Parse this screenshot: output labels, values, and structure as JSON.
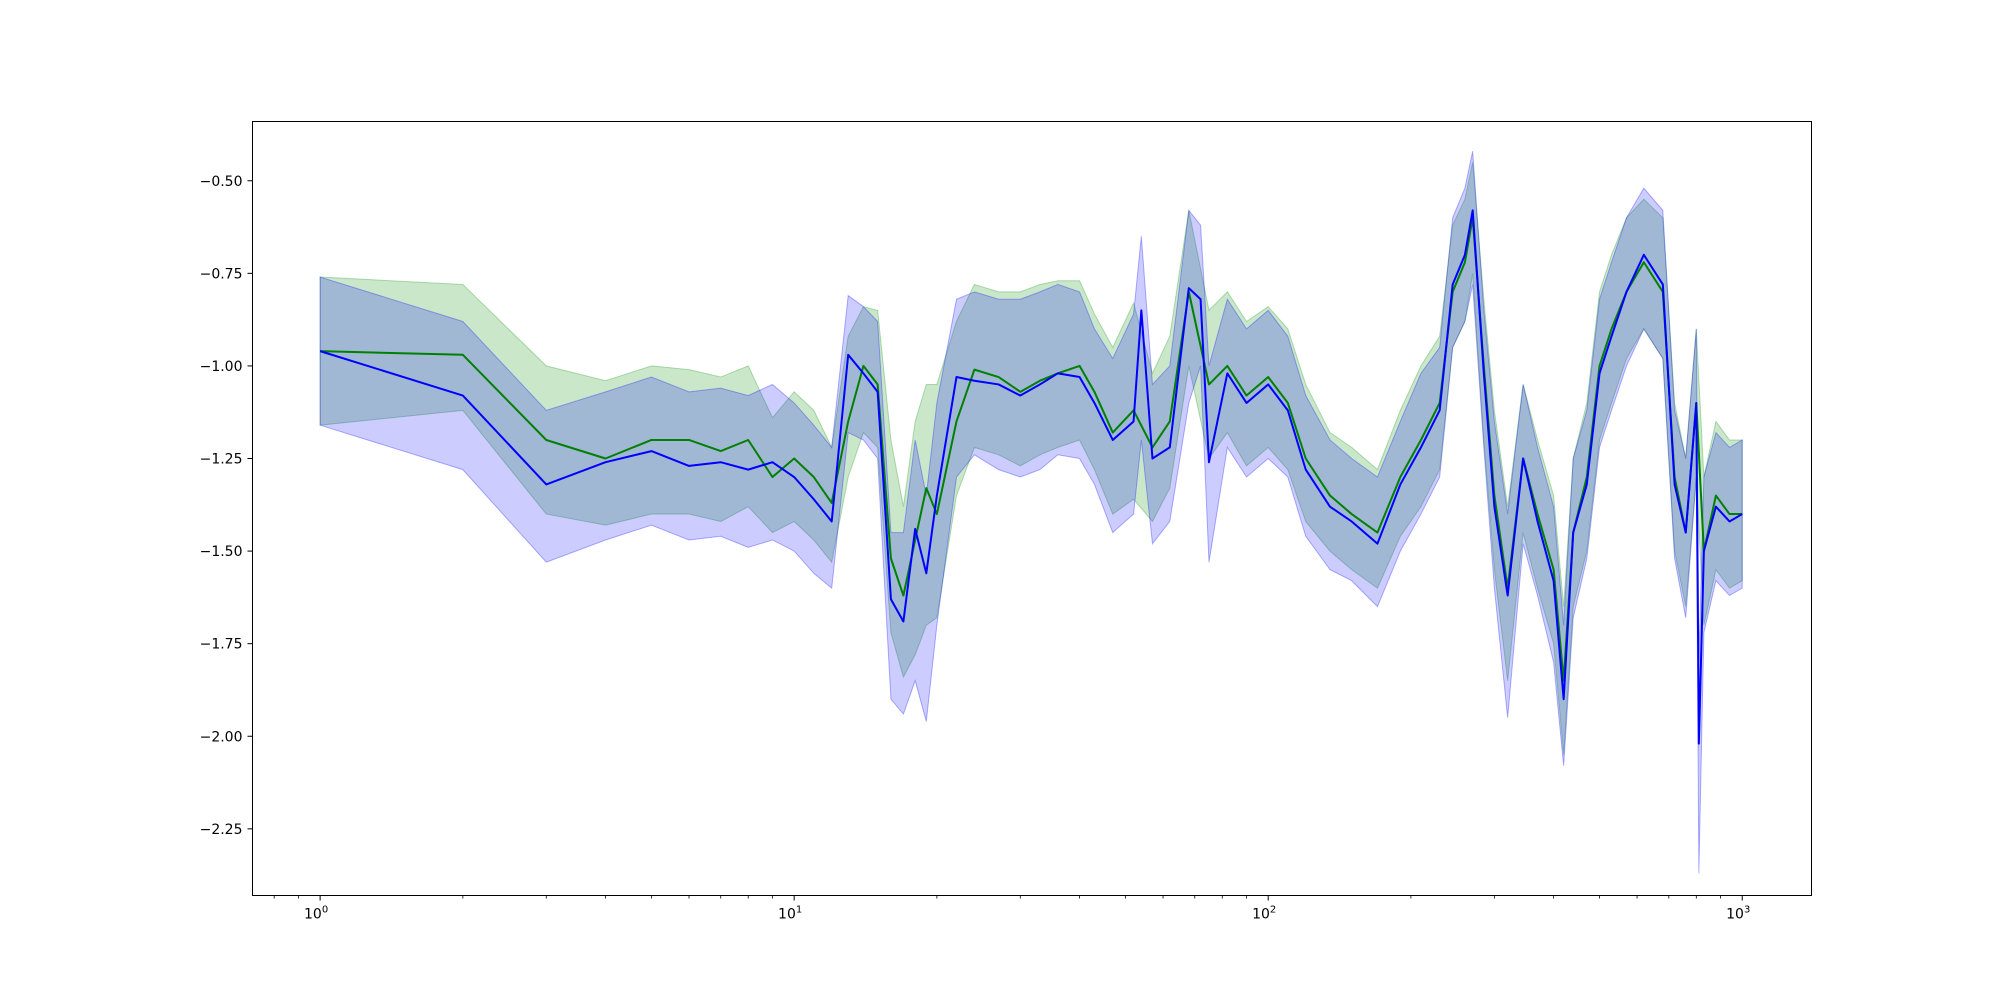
{
  "chart_data": {
    "type": "line",
    "title": "",
    "xlabel": "",
    "ylabel": "",
    "x_scale": "log",
    "xlim": [
      0.72,
      1400
    ],
    "ylim": [
      -2.43,
      -0.34
    ],
    "grid": false,
    "legend": "none",
    "x_ticks": [
      {
        "value": 1,
        "base": "10",
        "exp": "0"
      },
      {
        "value": 10,
        "base": "10",
        "exp": "1"
      },
      {
        "value": 100,
        "base": "10",
        "exp": "2"
      },
      {
        "value": 1000,
        "base": "10",
        "exp": "3"
      }
    ],
    "y_ticks": [
      {
        "value": -0.5,
        "label": "−0.50"
      },
      {
        "value": -0.75,
        "label": "−0.75"
      },
      {
        "value": -1.0,
        "label": "−1.00"
      },
      {
        "value": -1.25,
        "label": "−1.25"
      },
      {
        "value": -1.5,
        "label": "−1.50"
      },
      {
        "value": -1.75,
        "label": "−1.75"
      },
      {
        "value": -2.0,
        "label": "−2.00"
      },
      {
        "value": -2.25,
        "label": "−2.25"
      }
    ],
    "series": [
      {
        "color": "#008000",
        "band_color": "#2ca02c",
        "band_opacity": 0.25,
        "points": [
          [
            1,
            -0.96,
            -1.16,
            -0.76
          ],
          [
            2,
            -0.97,
            -1.12,
            -0.78
          ],
          [
            3,
            -1.2,
            -1.4,
            -1.0
          ],
          [
            4,
            -1.25,
            -1.43,
            -1.04
          ],
          [
            5,
            -1.2,
            -1.4,
            -1.0
          ],
          [
            6,
            -1.2,
            -1.4,
            -1.01
          ],
          [
            7,
            -1.23,
            -1.42,
            -1.03
          ],
          [
            8,
            -1.2,
            -1.38,
            -1.0
          ],
          [
            9,
            -1.3,
            -1.45,
            -1.14
          ],
          [
            10,
            -1.25,
            -1.42,
            -1.07
          ],
          [
            11,
            -1.3,
            -1.47,
            -1.12
          ],
          [
            12,
            -1.37,
            -1.53,
            -1.22
          ],
          [
            13,
            -1.15,
            -1.3,
            -0.92
          ],
          [
            14,
            -1.0,
            -1.18,
            -0.84
          ],
          [
            15,
            -1.05,
            -1.22,
            -0.85
          ],
          [
            16,
            -1.52,
            -1.72,
            -1.2
          ],
          [
            17,
            -1.62,
            -1.84,
            -1.38
          ],
          [
            18,
            -1.47,
            -1.78,
            -1.15
          ],
          [
            19,
            -1.33,
            -1.7,
            -1.05
          ],
          [
            20,
            -1.4,
            -1.68,
            -1.05
          ],
          [
            22,
            -1.15,
            -1.35,
            -0.88
          ],
          [
            24,
            -1.01,
            -1.22,
            -0.78
          ],
          [
            27,
            -1.03,
            -1.24,
            -0.8
          ],
          [
            30,
            -1.07,
            -1.27,
            -0.8
          ],
          [
            33,
            -1.04,
            -1.24,
            -0.78
          ],
          [
            36,
            -1.02,
            -1.22,
            -0.77
          ],
          [
            40,
            -1.0,
            -1.2,
            -0.77
          ],
          [
            43,
            -1.07,
            -1.28,
            -0.86
          ],
          [
            47,
            -1.18,
            -1.4,
            -0.95
          ],
          [
            52,
            -1.12,
            -1.36,
            -0.83
          ],
          [
            57,
            -1.22,
            -1.42,
            -1.02
          ],
          [
            62,
            -1.15,
            -1.33,
            -0.92
          ],
          [
            68,
            -0.8,
            -1.0,
            -0.58
          ],
          [
            75,
            -1.05,
            -1.25,
            -0.85
          ],
          [
            82,
            -1.0,
            -1.18,
            -0.8
          ],
          [
            90,
            -1.08,
            -1.27,
            -0.88
          ],
          [
            100,
            -1.03,
            -1.22,
            -0.84
          ],
          [
            110,
            -1.1,
            -1.28,
            -0.9
          ],
          [
            120,
            -1.25,
            -1.42,
            -1.05
          ],
          [
            135,
            -1.35,
            -1.5,
            -1.18
          ],
          [
            150,
            -1.4,
            -1.55,
            -1.22
          ],
          [
            170,
            -1.45,
            -1.6,
            -1.28
          ],
          [
            190,
            -1.3,
            -1.46,
            -1.12
          ],
          [
            210,
            -1.2,
            -1.38,
            -1.0
          ],
          [
            230,
            -1.1,
            -1.28,
            -0.92
          ],
          [
            245,
            -0.8,
            -0.95,
            -0.62
          ],
          [
            260,
            -0.72,
            -0.88,
            -0.55
          ],
          [
            270,
            -0.6,
            -0.75,
            -0.45
          ],
          [
            285,
            -1.0,
            -1.2,
            -0.82
          ],
          [
            300,
            -1.35,
            -1.55,
            -1.12
          ],
          [
            320,
            -1.6,
            -1.85,
            -1.38
          ],
          [
            345,
            -1.25,
            -1.45,
            -1.05
          ],
          [
            370,
            -1.4,
            -1.6,
            -1.2
          ],
          [
            400,
            -1.55,
            -1.75,
            -1.35
          ],
          [
            420,
            -1.85,
            -2.05,
            -1.65
          ],
          [
            440,
            -1.45,
            -1.65,
            -1.25
          ],
          [
            470,
            -1.3,
            -1.5,
            -1.1
          ],
          [
            500,
            -1.0,
            -1.2,
            -0.8
          ],
          [
            530,
            -0.9,
            -1.1,
            -0.7
          ],
          [
            570,
            -0.8,
            -0.98,
            -0.6
          ],
          [
            620,
            -0.72,
            -0.9,
            -0.55
          ],
          [
            680,
            -0.8,
            -0.98,
            -0.6
          ],
          [
            720,
            -1.3,
            -1.5,
            -1.1
          ],
          [
            760,
            -1.45,
            -1.65,
            -1.25
          ],
          [
            800,
            -1.1,
            -1.3,
            -0.9
          ],
          [
            830,
            -1.5,
            -1.7,
            -1.3
          ],
          [
            880,
            -1.35,
            -1.55,
            -1.15
          ],
          [
            940,
            -1.4,
            -1.6,
            -1.2
          ],
          [
            1000,
            -1.4,
            -1.58,
            -1.2
          ]
        ]
      },
      {
        "color": "#0000ff",
        "band_color": "#0000ff",
        "band_opacity": 0.2,
        "points": [
          [
            1,
            -0.96,
            -1.16,
            -0.76
          ],
          [
            2,
            -1.08,
            -1.28,
            -0.88
          ],
          [
            3,
            -1.32,
            -1.53,
            -1.12
          ],
          [
            4,
            -1.26,
            -1.47,
            -1.07
          ],
          [
            5,
            -1.23,
            -1.43,
            -1.03
          ],
          [
            6,
            -1.27,
            -1.47,
            -1.07
          ],
          [
            7,
            -1.26,
            -1.46,
            -1.06
          ],
          [
            8,
            -1.28,
            -1.49,
            -1.08
          ],
          [
            9,
            -1.26,
            -1.47,
            -1.05
          ],
          [
            10,
            -1.3,
            -1.5,
            -1.1
          ],
          [
            11,
            -1.36,
            -1.56,
            -1.16
          ],
          [
            12,
            -1.42,
            -1.6,
            -1.22
          ],
          [
            13,
            -0.97,
            -1.18,
            -0.81
          ],
          [
            14,
            -1.02,
            -1.2,
            -0.84
          ],
          [
            15,
            -1.07,
            -1.25,
            -0.88
          ],
          [
            16,
            -1.63,
            -1.9,
            -1.45
          ],
          [
            17,
            -1.69,
            -1.94,
            -1.45
          ],
          [
            18,
            -1.44,
            -1.85,
            -1.2
          ],
          [
            19,
            -1.56,
            -1.96,
            -1.35
          ],
          [
            20,
            -1.35,
            -1.7,
            -1.1
          ],
          [
            22,
            -1.03,
            -1.3,
            -0.82
          ],
          [
            24,
            -1.04,
            -1.24,
            -0.8
          ],
          [
            27,
            -1.05,
            -1.28,
            -0.82
          ],
          [
            30,
            -1.08,
            -1.3,
            -0.82
          ],
          [
            33,
            -1.05,
            -1.28,
            -0.8
          ],
          [
            36,
            -1.02,
            -1.24,
            -0.78
          ],
          [
            40,
            -1.03,
            -1.25,
            -0.8
          ],
          [
            43,
            -1.1,
            -1.32,
            -0.9
          ],
          [
            47,
            -1.2,
            -1.45,
            -0.98
          ],
          [
            52,
            -1.15,
            -1.4,
            -0.86
          ],
          [
            54,
            -0.85,
            -1.2,
            -0.65
          ],
          [
            57,
            -1.25,
            -1.48,
            -1.05
          ],
          [
            62,
            -1.22,
            -1.42,
            -1.0
          ],
          [
            68,
            -0.79,
            -1.1,
            -0.58
          ],
          [
            72,
            -0.82,
            -1.0,
            -0.62
          ],
          [
            75,
            -1.26,
            -1.53,
            -1.0
          ],
          [
            82,
            -1.02,
            -1.22,
            -0.82
          ],
          [
            90,
            -1.1,
            -1.3,
            -0.9
          ],
          [
            100,
            -1.05,
            -1.25,
            -0.85
          ],
          [
            110,
            -1.12,
            -1.3,
            -0.92
          ],
          [
            120,
            -1.28,
            -1.46,
            -1.08
          ],
          [
            135,
            -1.38,
            -1.55,
            -1.2
          ],
          [
            150,
            -1.42,
            -1.58,
            -1.25
          ],
          [
            170,
            -1.48,
            -1.65,
            -1.3
          ],
          [
            190,
            -1.32,
            -1.5,
            -1.15
          ],
          [
            210,
            -1.22,
            -1.4,
            -1.02
          ],
          [
            230,
            -1.12,
            -1.3,
            -0.95
          ],
          [
            245,
            -0.78,
            -0.95,
            -0.6
          ],
          [
            260,
            -0.7,
            -0.88,
            -0.52
          ],
          [
            270,
            -0.58,
            -0.78,
            -0.42
          ],
          [
            285,
            -1.02,
            -1.22,
            -0.85
          ],
          [
            300,
            -1.38,
            -1.6,
            -1.15
          ],
          [
            320,
            -1.62,
            -1.95,
            -1.4
          ],
          [
            345,
            -1.25,
            -1.48,
            -1.05
          ],
          [
            370,
            -1.42,
            -1.62,
            -1.22
          ],
          [
            400,
            -1.58,
            -1.8,
            -1.38
          ],
          [
            420,
            -1.9,
            -2.08,
            -1.7
          ],
          [
            440,
            -1.45,
            -1.68,
            -1.25
          ],
          [
            470,
            -1.32,
            -1.52,
            -1.12
          ],
          [
            500,
            -1.02,
            -1.22,
            -0.82
          ],
          [
            530,
            -0.92,
            -1.12,
            -0.72
          ],
          [
            570,
            -0.8,
            -1.0,
            -0.6
          ],
          [
            620,
            -0.7,
            -0.9,
            -0.52
          ],
          [
            680,
            -0.78,
            -0.98,
            -0.58
          ],
          [
            720,
            -1.32,
            -1.52,
            -1.12
          ],
          [
            760,
            -1.45,
            -1.68,
            -1.25
          ],
          [
            800,
            -1.1,
            -1.3,
            -0.9
          ],
          [
            810,
            -2.02,
            -2.37,
            -1.8
          ],
          [
            830,
            -1.5,
            -1.72,
            -1.3
          ],
          [
            880,
            -1.38,
            -1.58,
            -1.18
          ],
          [
            940,
            -1.42,
            -1.62,
            -1.22
          ],
          [
            1000,
            -1.4,
            -1.6,
            -1.2
          ]
        ]
      }
    ]
  }
}
